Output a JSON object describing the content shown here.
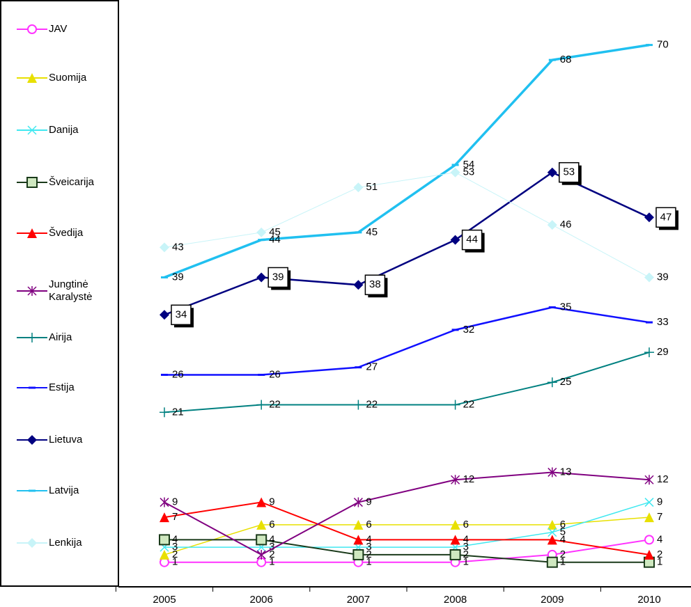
{
  "chart_data": {
    "type": "line",
    "categories": [
      "2005",
      "2006",
      "2007",
      "2008",
      "2009",
      "2010"
    ],
    "ylim": [
      76,
      -2
    ],
    "series": [
      {
        "name": "JAV",
        "color": "#ff33ff",
        "marker": "circle",
        "values": [
          1,
          1,
          1,
          1,
          2,
          4
        ]
      },
      {
        "name": "Suomija",
        "color": "#e8e000",
        "marker": "triangle",
        "values": [
          2,
          6,
          6,
          6,
          6,
          7
        ]
      },
      {
        "name": "Danija",
        "color": "#40e8f0",
        "marker": "x",
        "values": [
          3,
          3,
          3,
          3,
          5,
          9
        ]
      },
      {
        "name": "Šveicarija",
        "color": "#1a3a1a",
        "marker": "square",
        "values": [
          4,
          4,
          2,
          2,
          1,
          1
        ]
      },
      {
        "name": "Švedija",
        "color": "#ff0000",
        "marker": "triangle",
        "values": [
          7,
          9,
          4,
          4,
          4,
          2
        ]
      },
      {
        "name": "Jungtinė Karalystė",
        "color": "#800080",
        "marker": "star",
        "values": [
          9,
          2,
          9,
          12,
          13,
          12
        ]
      },
      {
        "name": "Airija",
        "color": "#008080",
        "marker": "plus",
        "values": [
          21,
          22,
          22,
          22,
          25,
          29
        ]
      },
      {
        "name": "Estija",
        "color": "#1010ff",
        "marker": "dash",
        "values": [
          26,
          26,
          27,
          32,
          35,
          33
        ]
      },
      {
        "name": "Lietuva",
        "color": "#000080",
        "marker": "diamond",
        "values": [
          34,
          39,
          38,
          44,
          53,
          47
        ]
      },
      {
        "name": "Latvija",
        "color": "#20c0f0",
        "marker": "dash",
        "values": [
          39,
          44,
          45,
          54,
          68,
          70
        ]
      },
      {
        "name": "Lenkija",
        "color": "#c8f4f8",
        "marker": "diamond",
        "values": [
          43,
          45,
          51,
          53,
          46,
          39
        ]
      }
    ]
  }
}
